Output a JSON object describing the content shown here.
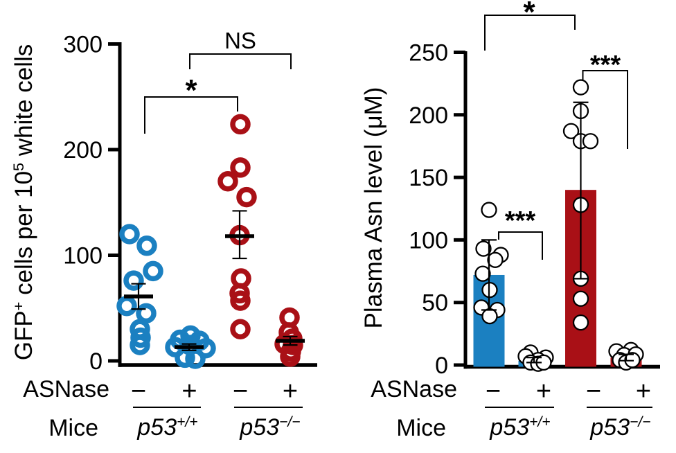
{
  "colors": {
    "blue": "#1b80c1",
    "red": "#a91016",
    "axis": "#000000",
    "point_fill": "#ffffff"
  },
  "chart_data": [
    {
      "id": "gfp-cells-panel",
      "type": "scatter",
      "ylabel": "GFP^{+} cells per 10^{5} white cells",
      "ylim": [
        0,
        300
      ],
      "yticks": [
        0,
        100,
        200,
        300
      ],
      "xrows": {
        "treatment_label": "ASNase",
        "treatment_values": [
          "−",
          "+",
          "−",
          "+"
        ],
        "mice_label": "Mice",
        "genotypes": [
          "p53^{+/+}",
          "p53^{−/−}"
        ]
      },
      "groups": [
        {
          "genotype": "p53+/+",
          "asnase": "−",
          "color": "blue",
          "mean": 61,
          "err": [
            49,
            73
          ],
          "points": [
            [
              120,
              -13
            ],
            [
              109,
              12
            ],
            [
              85,
              21
            ],
            [
              76,
              -7
            ],
            [
              52,
              -17
            ],
            [
              45,
              11
            ],
            [
              30,
              2
            ],
            [
              22,
              3
            ],
            [
              15,
              2
            ]
          ]
        },
        {
          "genotype": "p53+/+",
          "asnase": "+",
          "color": "blue",
          "mean": 13,
          "err": [
            10,
            16
          ],
          "points": [
            [
              24,
              2
            ],
            [
              20,
              -13
            ],
            [
              19,
              15
            ],
            [
              15,
              1
            ],
            [
              13,
              -20
            ],
            [
              12,
              24
            ],
            [
              3,
              -6
            ],
            [
              2,
              9
            ]
          ]
        },
        {
          "genotype": "p53−/−",
          "asnase": "−",
          "color": "red",
          "mean": 118,
          "err": [
            97,
            142
          ],
          "points": [
            [
              224,
              1
            ],
            [
              183,
              1
            ],
            [
              170,
              -17
            ],
            [
              155,
              10
            ],
            [
              119,
              0
            ],
            [
              78,
              2
            ],
            [
              64,
              0
            ],
            [
              57,
              1
            ],
            [
              30,
              1
            ]
          ]
        },
        {
          "genotype": "p53−/−",
          "asnase": "+",
          "color": "red",
          "mean": 19,
          "err": [
            15,
            23
          ],
          "points": [
            [
              41,
              -1
            ],
            [
              27,
              -2
            ],
            [
              21,
              3
            ],
            [
              16,
              -8
            ],
            [
              15,
              4
            ],
            [
              9,
              1
            ],
            [
              4,
              0
            ]
          ]
        }
      ],
      "significance": [
        {
          "label": "*",
          "between": [
            0,
            2
          ]
        },
        {
          "label": "NS",
          "between": [
            1,
            3
          ]
        }
      ]
    },
    {
      "id": "plasma-asn-panel",
      "type": "bar-scatter",
      "ylabel": "Plasma Asn level (μM)",
      "ylim": [
        0,
        250
      ],
      "yticks": [
        0,
        50,
        100,
        150,
        200,
        250
      ],
      "xrows": {
        "treatment_label": "ASNase",
        "treatment_values": [
          "−",
          "+",
          "−",
          "+"
        ],
        "mice_label": "Mice",
        "genotypes": [
          "p53^{+/+}",
          "p53^{−/−}"
        ]
      },
      "groups": [
        {
          "genotype": "p53+/+",
          "asnase": "−",
          "color": "blue",
          "bar": 72,
          "err": [
            44,
            100
          ],
          "points": [
            [
              124,
              0
            ],
            [
              93,
              -8
            ],
            [
              88,
              17
            ],
            [
              84,
              9
            ],
            [
              73,
              -9
            ],
            [
              60,
              1
            ],
            [
              46,
              -11
            ],
            [
              44,
              12
            ],
            [
              39,
              1
            ]
          ]
        },
        {
          "genotype": "p53+/+",
          "asnase": "+",
          "color": "blue",
          "bar": 3.5,
          "err": [
            2,
            6
          ],
          "points": [
            [
              10,
              -5
            ],
            [
              7,
              -12
            ],
            [
              6,
              17
            ],
            [
              4,
              6
            ],
            [
              2,
              -5
            ],
            [
              1,
              6
            ],
            [
              2,
              14
            ]
          ]
        },
        {
          "genotype": "p53−/−",
          "asnase": "−",
          "color": "red",
          "bar": 140,
          "err": [
            69,
            210
          ],
          "points": [
            [
              222,
              0
            ],
            [
              203,
              0
            ],
            [
              187,
              -14
            ],
            [
              179,
              0
            ],
            [
              179,
              14
            ],
            [
              128,
              0
            ],
            [
              69,
              0
            ],
            [
              53,
              0
            ],
            [
              34,
              0
            ]
          ]
        },
        {
          "genotype": "p53−/−",
          "asnase": "+",
          "color": "red",
          "bar": 6,
          "err": [
            3.5,
            8.5
          ],
          "points": [
            [
              11,
              -14
            ],
            [
              12,
              7
            ],
            [
              8,
              -3
            ],
            [
              8.5,
              14
            ],
            [
              4,
              -9
            ],
            [
              2,
              0
            ],
            [
              4,
              9
            ]
          ]
        }
      ],
      "significance": [
        {
          "label": "*",
          "between": [
            0,
            2
          ]
        },
        {
          "label": "***",
          "between": [
            0,
            1
          ]
        },
        {
          "label": "***",
          "between": [
            2,
            3
          ]
        }
      ]
    }
  ]
}
